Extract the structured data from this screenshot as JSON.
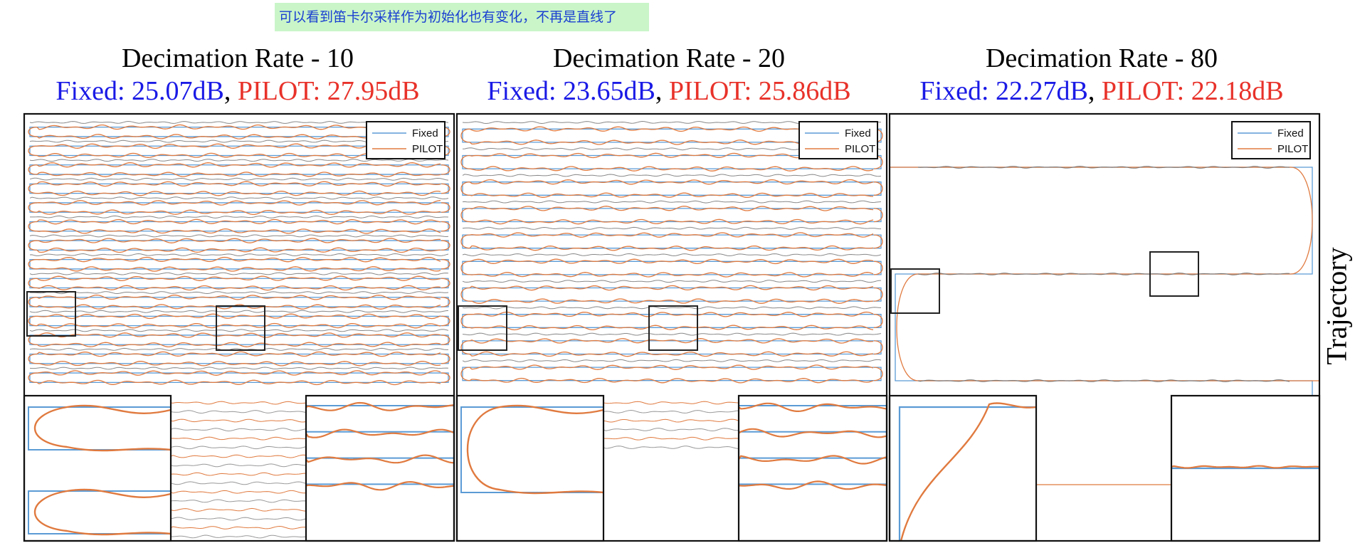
{
  "note": "可以看到笛卡尔采样作为初始化也有变化，不再是直线了",
  "panels": [
    {
      "title": "Decimation Rate - 10",
      "fixed": "Fixed: 25.07dB",
      "pilot": "PILOT: 27.95dB"
    },
    {
      "title": "Decimation Rate - 20",
      "fixed": "Fixed: 23.65dB",
      "pilot": "PILOT: 25.86dB"
    },
    {
      "title": "Decimation Rate - 80",
      "fixed": "Fixed: 22.27dB",
      "pilot": "PILOT: 22.18dB"
    }
  ],
  "comma": ",",
  "legend": {
    "fixed": "Fixed",
    "pilot": "PILOT"
  },
  "row_label": "Trajectory",
  "colors": {
    "fixed": "#5b9bd5",
    "pilot": "#e07a3f",
    "fixed_text": "#1a1ae6",
    "pilot_text": "#e8322a"
  }
}
